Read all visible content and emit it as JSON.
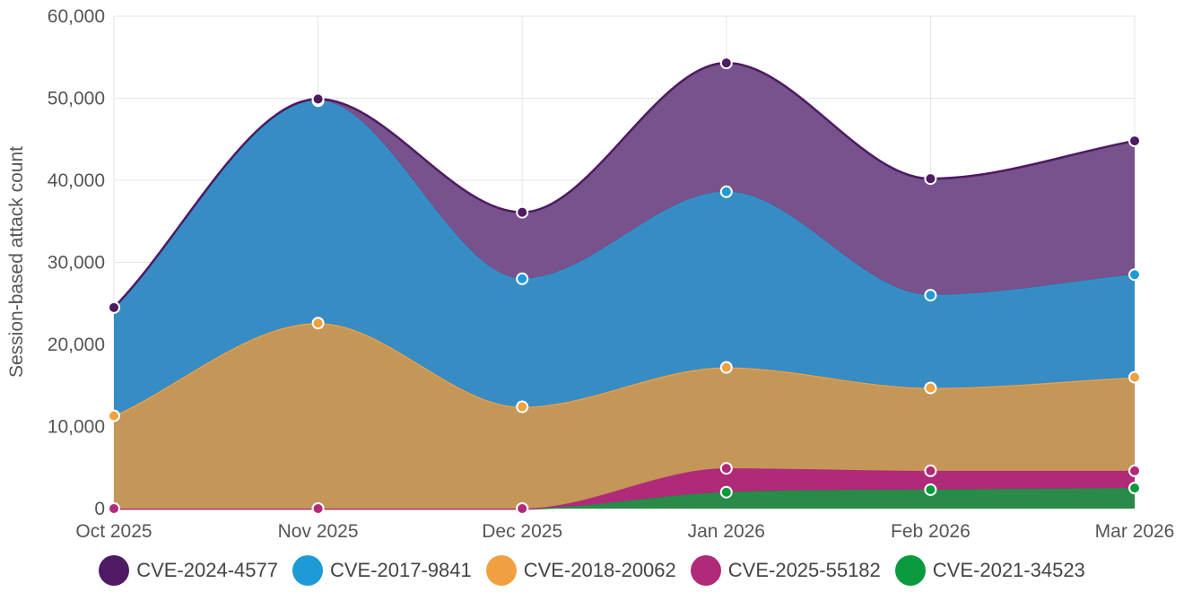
{
  "chart_data": {
    "type": "area",
    "stacked": true,
    "ylabel": "Session-based attack count",
    "xlabel": "",
    "ylim": [
      0,
      60000
    ],
    "yticks": [
      "0",
      "10,000",
      "20,000",
      "30,000",
      "40,000",
      "50,000",
      "60,000"
    ],
    "ytick_values": [
      0,
      10000,
      20000,
      30000,
      40000,
      50000,
      60000
    ],
    "categories": [
      "Oct 2025",
      "Nov 2025",
      "Dec 2025",
      "Jan 2026",
      "Feb 2026",
      "Mar 2026"
    ],
    "grid": true,
    "legend_position": "bottom",
    "series": [
      {
        "name": "CVE-2021-34523",
        "color": "#2a8a48",
        "line": "#0a9a3e",
        "values": [
          0,
          0,
          0,
          2000,
          2300,
          2500
        ]
      },
      {
        "name": "CVE-2025-55182",
        "color": "#b02a7a",
        "line": "#b02a7a",
        "values": [
          0,
          0,
          0,
          2900,
          2300,
          2100
        ]
      },
      {
        "name": "CVE-2018-20062",
        "color": "#c49658",
        "line": "#f0a040",
        "values": [
          11300,
          22600,
          12400,
          12300,
          10100,
          11400
        ]
      },
      {
        "name": "CVE-2017-9841",
        "color": "#378cc4",
        "line": "#1e9bd6",
        "values": [
          13200,
          27100,
          15600,
          21400,
          11300,
          12500
        ]
      },
      {
        "name": "CVE-2024-4577",
        "color": "#77528c",
        "line": "#4d1a63",
        "values": [
          0,
          200,
          8100,
          15700,
          14200,
          16300
        ]
      }
    ]
  },
  "legend": [
    {
      "label": "CVE-2024-4577",
      "color": "#4d1a63"
    },
    {
      "label": "CVE-2017-9841",
      "color": "#1e9bd6"
    },
    {
      "label": "CVE-2018-20062",
      "color": "#f0a040"
    },
    {
      "label": "CVE-2025-55182",
      "color": "#b02a7a"
    },
    {
      "label": "CVE-2021-34523",
      "color": "#0a9a3e"
    }
  ]
}
